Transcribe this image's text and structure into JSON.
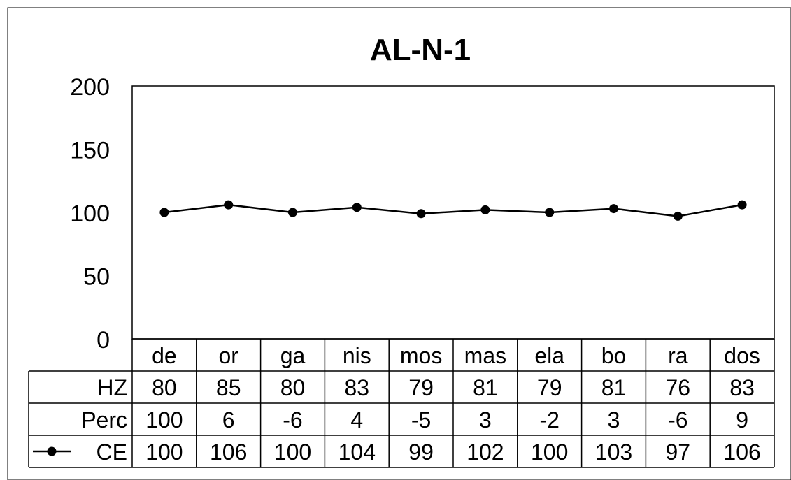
{
  "chart_data": {
    "type": "line",
    "title": "AL-N-1",
    "xlabel": "",
    "ylabel": "",
    "ylim": [
      0,
      200
    ],
    "yticks": [
      0,
      50,
      100,
      150,
      200
    ],
    "grid": false,
    "categories": [
      "de",
      "or",
      "ga",
      "nis",
      "mos",
      "mas",
      "ela",
      "bo",
      "ra",
      "dos"
    ],
    "series": [
      {
        "name": "CE",
        "values": [
          100,
          106,
          100,
          104,
          99,
          102,
          100,
          103,
          97,
          106
        ],
        "color": "#000000",
        "marker": "circle"
      }
    ],
    "table": {
      "rows": [
        {
          "label": "HZ",
          "values": [
            80,
            85,
            80,
            83,
            79,
            81,
            79,
            81,
            76,
            83
          ]
        },
        {
          "label": "Perc",
          "values": [
            100,
            6,
            -6,
            4,
            -5,
            3,
            -2,
            3,
            -6,
            9
          ]
        },
        {
          "label": "CE",
          "values": [
            100,
            106,
            100,
            104,
            99,
            102,
            100,
            103,
            97,
            106
          ],
          "legend_key": true
        }
      ]
    }
  }
}
